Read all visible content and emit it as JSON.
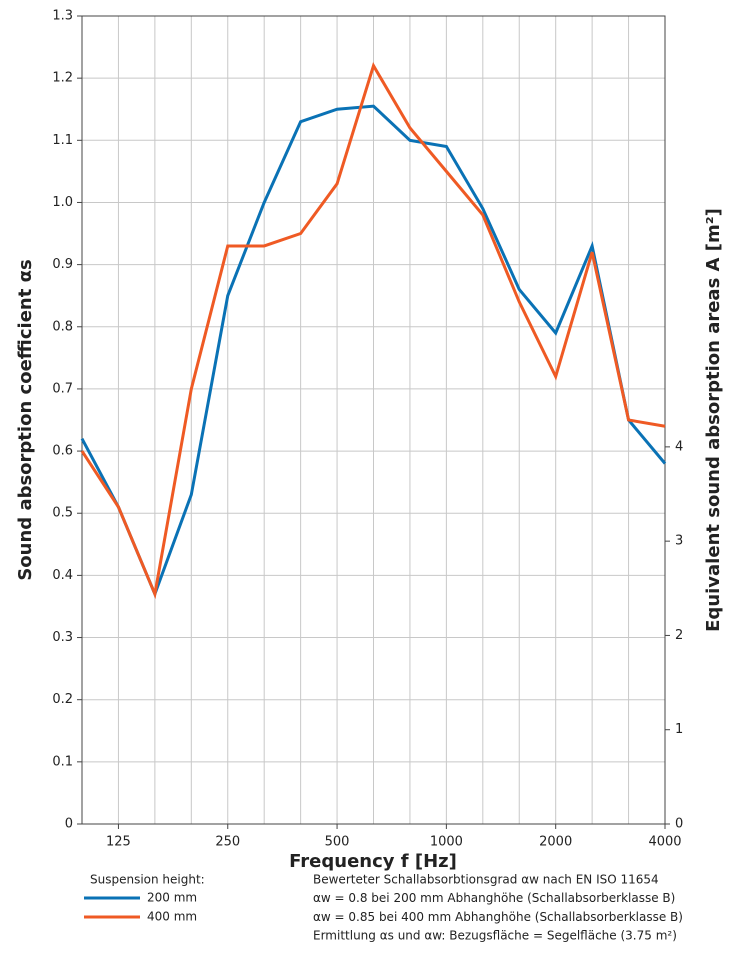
{
  "chart_data": {
    "type": "line",
    "y_label": "Sound absorption coefficient αs",
    "y2_label": "Equivalent sound absorption areas A [m²]",
    "x_label": "Frequency f [Hz]",
    "categories": [
      null,
      "125",
      null,
      null,
      "250",
      null,
      null,
      "500",
      null,
      null,
      "1000",
      null,
      null,
      "2000",
      null,
      null,
      "4000"
    ],
    "series": [
      {
        "name": "200 mm",
        "color": "#0a72b5",
        "values": [
          0.62,
          0.51,
          0.37,
          0.53,
          0.85,
          1.0,
          1.13,
          1.15,
          1.155,
          1.1,
          1.09,
          0.99,
          0.86,
          0.79,
          0.93,
          0.65,
          0.58
        ]
      },
      {
        "name": "400 mm",
        "color": "#ef5a24",
        "values": [
          0.6,
          0.51,
          0.37,
          0.7,
          0.93,
          0.93,
          0.95,
          1.03,
          1.22,
          1.12,
          1.05,
          0.98,
          0.84,
          0.72,
          0.92,
          0.65,
          0.64
        ]
      }
    ],
    "ylim": [
      0,
      1.3
    ],
    "yticks": [
      0,
      0.1,
      0.2,
      0.3,
      0.4,
      0.5,
      0.6,
      0.7,
      0.8,
      0.9,
      {
        "value": 1,
        "label": "1.0"
      },
      1.1,
      1.2,
      1.3
    ],
    "y2lim": [
      0,
      8.57
    ],
    "y2ticks": [
      0,
      1,
      2,
      3,
      4
    ],
    "grid": true,
    "legend_title": "Suspension height:",
    "notes": [
      "Bewerteter Schallabsorbtionsgrad αw nach EN ISO 11654",
      "αw = 0.8   bei 200 mm Abhanghöhe (Schallabsorberklasse B)",
      "αw = 0.85 bei 400 mm Abhanghöhe (Schallabsorberklasse B)",
      "Ermittlung αs und αw: Bezugsfläche = Segelfläche (3.75 m²)"
    ]
  }
}
